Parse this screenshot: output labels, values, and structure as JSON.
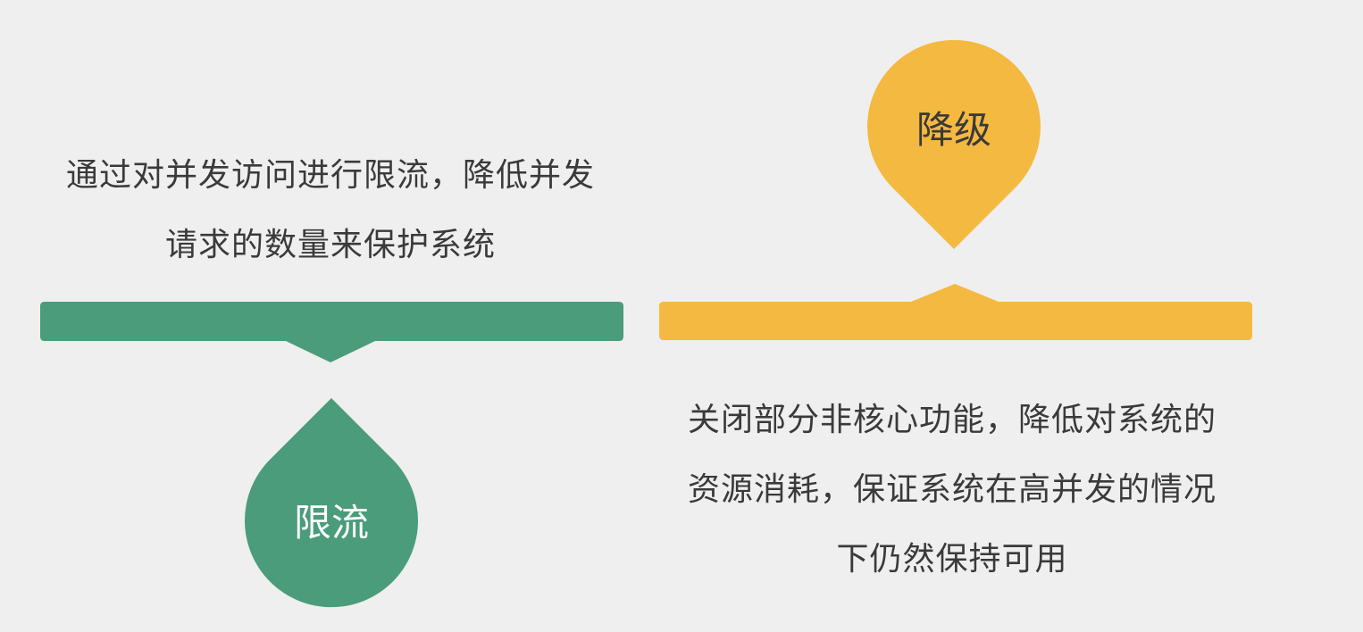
{
  "left_panel": {
    "description_lines": [
      "通过对并发访问进行限流，降低并发",
      "请求的数量来保护系统"
    ],
    "badge_label": "限流",
    "color": "#4a9c7b"
  },
  "right_panel": {
    "description_lines": [
      "关闭部分非核心功能，降低对系统的",
      "资源消耗，保证系统在高并发的情况",
      "下仍然保持可用"
    ],
    "badge_label": "降级",
    "color": "#f4b940"
  },
  "text_color": "#3a3a3a",
  "background": "#efefef"
}
